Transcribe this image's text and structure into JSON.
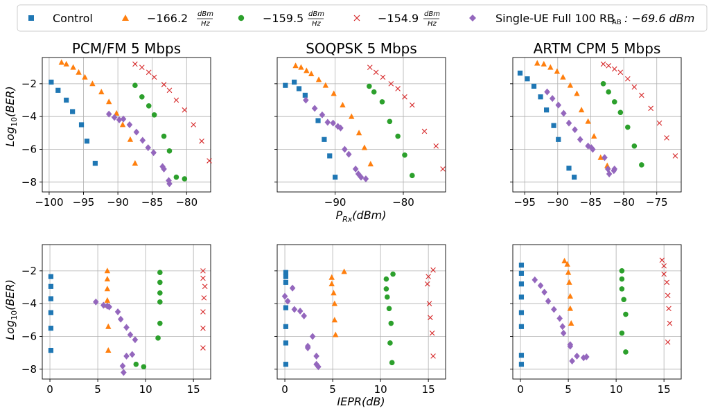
{
  "legend": {
    "entries": [
      {
        "label": "Control",
        "marker": "square",
        "color": "#1f77b4"
      },
      {
        "label": "−166.2",
        "unit_num": "dBm",
        "unit_den": "Hz",
        "marker": "triangle",
        "color": "#ff7f0e"
      },
      {
        "label": "−159.5",
        "unit_num": "dBm",
        "unit_den": "Hz",
        "marker": "circle",
        "color": "#2ca02c"
      },
      {
        "label": "−154.9",
        "unit_num": "dBm",
        "unit_den": "Hz",
        "marker": "x",
        "color": "#d62728"
      },
      {
        "label": "Single-UE Full 100 RB",
        "sub": "AB",
        "suffix": ": −69.6 dBm",
        "marker": "diamond",
        "color": "#9467bd"
      }
    ]
  },
  "row_labels": {
    "top_ylabel": "Log",
    "bottom_ylabel": "Log",
    "ylabel_sub": "10",
    "ylabel_suffix": "(BER)",
    "top_xlabel": "P",
    "top_xlabel_sub": "Rx",
    "top_xlabel_suffix": "(dBm)",
    "bottom_xlabel": "IEPR(dB)"
  },
  "chart_data": [
    {
      "type": "scatter",
      "title": "PCM/FM 5 Mbps",
      "xlim": [
        -101,
        -76.5
      ],
      "ylim": [
        -8.6,
        -0.4
      ],
      "xticks": [
        -100,
        -95,
        -90,
        -85,
        -80
      ],
      "yticks": [
        -2,
        -4,
        -6,
        -8
      ],
      "series": [
        {
          "marker": "square",
          "color": "#1f77b4",
          "x": [
            -99.7,
            -98.7,
            -97.5,
            -96.6,
            -95.3,
            -94.5,
            -93.3
          ],
          "y": [
            -1.9,
            -2.4,
            -3.0,
            -3.7,
            -4.5,
            -5.5,
            -6.85
          ]
        },
        {
          "marker": "triangle",
          "color": "#ff7f0e",
          "x": [
            -98.2,
            -97.5,
            -96.5,
            -95.7,
            -94.8,
            -93.7,
            -92.4,
            -91.3,
            -90.2,
            -89.3,
            -88.2,
            -87.5
          ],
          "y": [
            -0.7,
            -0.8,
            -1.0,
            -1.3,
            -1.6,
            -2.0,
            -2.5,
            -3.1,
            -3.8,
            -4.5,
            -5.4,
            -6.85
          ]
        },
        {
          "marker": "circle",
          "color": "#2ca02c",
          "x": [
            -87.5,
            -86.5,
            -85.5,
            -84.7,
            -83.3,
            -82.5,
            -81.5,
            -80.3
          ],
          "y": [
            -2.1,
            -2.8,
            -3.35,
            -3.9,
            -5.2,
            -6.1,
            -7.7,
            -7.8
          ]
        },
        {
          "marker": "x",
          "color": "#d62728",
          "x": [
            -87.5,
            -86.5,
            -85.5,
            -84.7,
            -83.3,
            -82.5,
            -81.5,
            -80.3,
            -79.0,
            -77.8,
            -76.7
          ],
          "y": [
            -0.8,
            -1.0,
            -1.3,
            -1.6,
            -2.05,
            -2.4,
            -3.0,
            -3.6,
            -4.5,
            -5.5,
            -6.7
          ]
        },
        {
          "marker": "diamond",
          "color": "#9467bd",
          "x": [
            -91.3,
            -90.5,
            -89.8,
            -89.2,
            -88.3,
            -87.3,
            -86.4,
            -85.6,
            -84.8,
            -83.5,
            -83.3,
            -82.6,
            -82.5
          ],
          "y": [
            -3.85,
            -4.05,
            -4.2,
            -4.15,
            -4.5,
            -4.95,
            -5.45,
            -5.9,
            -6.2,
            -7.05,
            -7.2,
            -7.9,
            -8.1
          ]
        }
      ]
    },
    {
      "type": "scatter",
      "title": "SOQPSK 5 Mbps",
      "xlim": [
        -98.5,
        -73.8
      ],
      "ylim": [
        -8.6,
        -0.4
      ],
      "xticks": [
        -90,
        -80
      ],
      "yticks": [
        -2,
        -4,
        -6,
        -8
      ],
      "series": [
        {
          "marker": "square",
          "color": "#1f77b4",
          "x": [
            -97.3,
            -96.0,
            -95.3,
            -94.4,
            -92.5,
            -91.6,
            -90.8,
            -90.0
          ],
          "y": [
            -2.1,
            -1.9,
            -2.3,
            -2.7,
            -4.25,
            -5.4,
            -6.4,
            -7.7
          ]
        },
        {
          "marker": "triangle",
          "color": "#ff7f0e",
          "x": [
            -95.8,
            -95.0,
            -94.2,
            -93.5,
            -92.4,
            -91.4,
            -90.2,
            -88.9,
            -87.6,
            -86.5,
            -85.7,
            -84.8
          ],
          "y": [
            -0.9,
            -1.0,
            -1.2,
            -1.4,
            -1.75,
            -2.1,
            -2.6,
            -3.3,
            -4.0,
            -5.0,
            -5.9,
            -6.9
          ]
        },
        {
          "marker": "circle",
          "color": "#2ca02c",
          "x": [
            -85.0,
            -84.3,
            -83.1,
            -82.0,
            -80.8,
            -79.8,
            -78.7
          ],
          "y": [
            -2.15,
            -2.5,
            -3.1,
            -4.3,
            -5.2,
            -6.35,
            -7.6
          ]
        },
        {
          "marker": "x",
          "color": "#d62728",
          "x": [
            -84.9,
            -84.0,
            -83.0,
            -81.8,
            -80.8,
            -79.8,
            -78.7,
            -76.9,
            -75.2,
            -74.2
          ],
          "y": [
            -1.0,
            -1.3,
            -1.6,
            -2.0,
            -2.3,
            -2.8,
            -3.3,
            -4.9,
            -5.8,
            -7.2
          ]
        },
        {
          "marker": "diamond",
          "color": "#9467bd",
          "x": [
            -94.3,
            -93.0,
            -91.9,
            -91.1,
            -90.3,
            -89.6,
            -89.2,
            -88.6,
            -88.0,
            -87.0,
            -86.6,
            -86.2,
            -85.5
          ],
          "y": [
            -3.0,
            -3.5,
            -3.9,
            -4.35,
            -4.4,
            -4.6,
            -4.7,
            -6.0,
            -6.3,
            -7.2,
            -7.5,
            -7.7,
            -7.8
          ]
        }
      ]
    },
    {
      "type": "scatter",
      "title": "ARTM CPM 5 Mbps",
      "xlim": [
        -96.8,
        -71.3
      ],
      "ylim": [
        -8.6,
        -0.4
      ],
      "xticks": [
        -95,
        -90,
        -85,
        -80,
        -75
      ],
      "yticks": [
        -2,
        -4,
        -6,
        -8
      ],
      "series": [
        {
          "marker": "square",
          "color": "#1f77b4",
          "x": [
            -95.7,
            -94.6,
            -93.6,
            -92.6,
            -91.7,
            -90.6,
            -89.9,
            -88.3,
            -87.5
          ],
          "y": [
            -1.35,
            -1.7,
            -2.15,
            -2.8,
            -3.6,
            -4.55,
            -5.4,
            -7.15,
            -7.7
          ]
        },
        {
          "marker": "triangle",
          "color": "#ff7f0e",
          "x": [
            -93.1,
            -92.1,
            -91.1,
            -90.1,
            -89.2,
            -88.1,
            -87.1,
            -86.4,
            -85.4,
            -84.5,
            -83.5,
            -82.5
          ],
          "y": [
            -0.75,
            -0.8,
            -1.0,
            -1.25,
            -1.6,
            -2.1,
            -2.6,
            -3.6,
            -4.3,
            -5.2,
            -6.5,
            -7.0
          ]
        },
        {
          "marker": "circle",
          "color": "#2ca02c",
          "x": [
            -83.1,
            -82.3,
            -81.4,
            -80.5,
            -79.4,
            -78.4,
            -77.3
          ],
          "y": [
            -2.0,
            -2.5,
            -3.1,
            -3.75,
            -4.65,
            -5.8,
            -6.95
          ]
        },
        {
          "marker": "x",
          "color": "#d62728",
          "x": [
            -83.1,
            -82.3,
            -81.4,
            -80.5,
            -79.4,
            -78.4,
            -77.3,
            -75.9,
            -74.6,
            -73.5,
            -72.2
          ],
          "y": [
            -0.8,
            -0.9,
            -1.1,
            -1.3,
            -1.7,
            -2.2,
            -2.7,
            -3.5,
            -4.4,
            -5.3,
            -6.4
          ]
        },
        {
          "marker": "diamond",
          "color": "#9467bd",
          "x": [
            -91.6,
            -90.8,
            -89.9,
            -89.1,
            -88.3,
            -87.4,
            -86.6,
            -85.4,
            -84.9,
            -84.7,
            -82.9,
            -82.4,
            -82.2,
            -81.5,
            -81.4
          ],
          "y": [
            -2.5,
            -2.9,
            -3.3,
            -3.8,
            -4.4,
            -4.8,
            -5.4,
            -5.8,
            -5.9,
            -6.0,
            -6.5,
            -7.2,
            -7.5,
            -7.3,
            -7.2
          ]
        }
      ]
    },
    {
      "type": "scatter",
      "title": "",
      "xlim": [
        -0.8,
        16.8
      ],
      "ylim": [
        -8.6,
        -0.4
      ],
      "xticks": [
        0,
        5,
        10,
        15
      ],
      "yticks": [
        -2,
        -4,
        -6,
        -8
      ],
      "series": [
        {
          "marker": "square",
          "color": "#1f77b4",
          "x": [
            0.1,
            0.1,
            0.1,
            0.1,
            0.1,
            0.1
          ],
          "y": [
            -2.35,
            -2.95,
            -3.7,
            -4.55,
            -5.5,
            -6.85
          ]
        },
        {
          "marker": "triangle",
          "color": "#ff7f0e",
          "x": [
            6.0,
            6.0,
            6.0,
            6.0,
            6.0,
            6.1,
            6.1
          ],
          "y": [
            -2.0,
            -2.5,
            -3.1,
            -3.8,
            -4.1,
            -5.4,
            -6.85
          ]
        },
        {
          "marker": "circle",
          "color": "#2ca02c",
          "x": [
            11.5,
            11.5,
            11.5,
            11.5,
            11.5,
            11.3,
            9.0,
            9.8
          ],
          "y": [
            -2.1,
            -2.7,
            -3.35,
            -3.9,
            -5.2,
            -6.1,
            -7.7,
            -7.85
          ]
        },
        {
          "marker": "x",
          "color": "#d62728",
          "x": [
            16.0,
            16.0,
            16.2,
            16.1,
            16.0,
            16.0,
            16.0
          ],
          "y": [
            -2.0,
            -2.45,
            -2.95,
            -3.65,
            -4.5,
            -5.5,
            -6.7
          ]
        },
        {
          "marker": "diamond",
          "color": "#9467bd",
          "x": [
            4.8,
            5.6,
            6.2,
            6.0,
            7.1,
            7.4,
            8.0,
            8.4,
            8.9,
            8.0,
            8.6,
            7.6,
            7.7
          ],
          "y": [
            -3.9,
            -4.1,
            -4.2,
            -4.15,
            -4.5,
            -4.95,
            -5.45,
            -5.9,
            -6.2,
            -7.2,
            -7.1,
            -7.8,
            -8.2
          ]
        }
      ]
    },
    {
      "type": "scatter",
      "title": "",
      "xlim": [
        -0.8,
        16.8
      ],
      "ylim": [
        -8.6,
        -0.4
      ],
      "xticks": [
        0,
        5,
        10,
        15
      ],
      "yticks": [
        -2,
        -4,
        -6,
        -8
      ],
      "series": [
        {
          "marker": "square",
          "color": "#1f77b4",
          "x": [
            0.1,
            0.1,
            0.1,
            0.1,
            0.1,
            0.1,
            0.1
          ],
          "y": [
            -2.1,
            -2.35,
            -2.7,
            -4.25,
            -5.4,
            -6.4,
            -7.7
          ]
        },
        {
          "marker": "triangle",
          "color": "#ff7f0e",
          "x": [
            4.9,
            4.9,
            6.2,
            5.1,
            5.2,
            5.2,
            5.3
          ],
          "y": [
            -2.4,
            -2.8,
            -2.05,
            -3.35,
            -4.0,
            -5.0,
            -5.9
          ]
        },
        {
          "marker": "circle",
          "color": "#2ca02c",
          "x": [
            10.6,
            11.3,
            10.6,
            10.7,
            10.9,
            11.1,
            11.0,
            11.2
          ],
          "y": [
            -2.5,
            -2.2,
            -3.1,
            -3.6,
            -4.3,
            -5.2,
            -6.4,
            -7.6
          ]
        },
        {
          "marker": "x",
          "color": "#d62728",
          "x": [
            15.5,
            15.0,
            14.9,
            15.1,
            15.2,
            15.4,
            15.5
          ],
          "y": [
            -1.95,
            -2.35,
            -2.8,
            -4.0,
            -4.85,
            -5.8,
            -7.2
          ]
        },
        {
          "marker": "diamond",
          "color": "#9467bd",
          "x": [
            0.8,
            0.0,
            0.3,
            1.0,
            1.6,
            2.0,
            2.9,
            2.4,
            2.4,
            3.3,
            3.3,
            3.5
          ],
          "y": [
            -3.05,
            -3.55,
            -3.85,
            -4.35,
            -4.45,
            -4.75,
            -6.0,
            -6.6,
            -6.7,
            -7.2,
            -7.7,
            -7.85
          ]
        }
      ]
    },
    {
      "type": "scatter",
      "title": "",
      "xlim": [
        -0.8,
        16.8
      ],
      "ylim": [
        -8.6,
        -0.4
      ],
      "xticks": [
        0,
        5,
        10,
        15
      ],
      "yticks": [
        -2,
        -4,
        -6,
        -8
      ],
      "series": [
        {
          "marker": "square",
          "color": "#1f77b4",
          "x": [
            0.1,
            0.1,
            0.1,
            0.1,
            0.1,
            0.1,
            0.1,
            0.1
          ],
          "y": [
            -1.65,
            -2.15,
            -2.8,
            -3.6,
            -4.55,
            -5.4,
            -7.15,
            -7.7
          ]
        },
        {
          "marker": "triangle",
          "color": "#ff7f0e",
          "x": [
            4.6,
            4.9,
            5.0,
            5.1,
            5.2,
            5.2,
            5.3
          ],
          "y": [
            -1.4,
            -1.6,
            -2.1,
            -2.7,
            -3.55,
            -4.3,
            -5.2
          ]
        },
        {
          "marker": "circle",
          "color": "#2ca02c",
          "x": [
            10.6,
            10.6,
            10.6,
            10.8,
            11.0,
            10.6,
            11.0
          ],
          "y": [
            -2.0,
            -2.5,
            -3.1,
            -3.75,
            -4.65,
            -5.8,
            -6.95
          ]
        },
        {
          "marker": "x",
          "color": "#d62728",
          "x": [
            14.8,
            15.0,
            15.0,
            15.3,
            15.4,
            15.5,
            15.6,
            15.4
          ],
          "y": [
            -1.35,
            -1.7,
            -2.2,
            -2.7,
            -3.5,
            -4.3,
            -5.2,
            -6.35
          ]
        },
        {
          "marker": "diamond",
          "color": "#9467bd",
          "x": [
            1.5,
            2.1,
            2.5,
            2.9,
            3.5,
            4.1,
            4.4,
            4.5,
            5.2,
            5.2,
            5.9,
            5.4,
            6.6,
            6.9
          ],
          "y": [
            -2.55,
            -2.9,
            -3.3,
            -3.85,
            -4.35,
            -4.9,
            -5.4,
            -5.8,
            -6.5,
            -6.6,
            -7.2,
            -7.5,
            -7.3,
            -7.25
          ]
        }
      ]
    }
  ]
}
